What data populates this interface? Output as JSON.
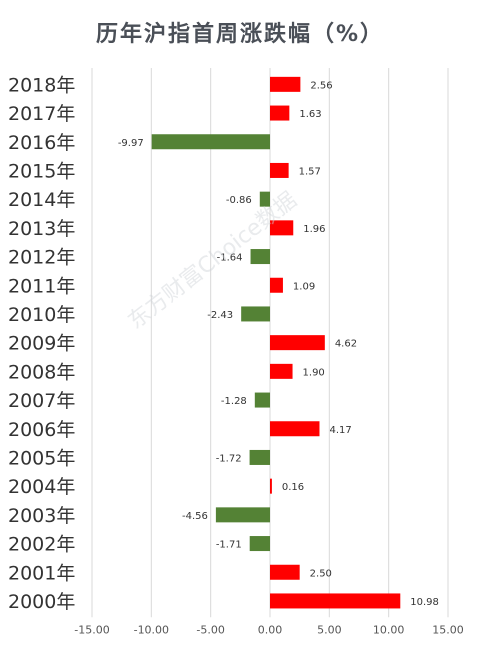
{
  "title": "历年沪指首周涨跌幅（%）",
  "watermark": "东方财富Choice数据",
  "colors": {
    "positive": "#ff0000",
    "negative": "#548235",
    "grid": "#d9d9d9",
    "text": "#333333"
  },
  "chart_data": {
    "type": "bar",
    "orientation": "horizontal",
    "title": "历年沪指首周涨跌幅（%）",
    "categories": [
      "2018年",
      "2017年",
      "2016年",
      "2015年",
      "2014年",
      "2013年",
      "2012年",
      "2011年",
      "2010年",
      "2009年",
      "2008年",
      "2007年",
      "2006年",
      "2005年",
      "2004年",
      "2003年",
      "2002年",
      "2001年",
      "2000年"
    ],
    "values": [
      2.56,
      1.63,
      -9.97,
      1.57,
      -0.86,
      1.96,
      -1.64,
      1.09,
      -2.43,
      4.62,
      1.9,
      -1.28,
      4.17,
      -1.72,
      0.16,
      -4.56,
      -1.71,
      2.5,
      10.98
    ],
    "data_labels": [
      "2.56",
      "1.63",
      "-9.97",
      "1.57",
      "-0.86",
      "1.96",
      "-1.64",
      "1.09",
      "-2.43",
      "4.62",
      "1.90",
      "-1.28",
      "4.17",
      "-1.72",
      "0.16",
      "-4.56",
      "-1.71",
      "2.50",
      "10.98"
    ],
    "xlim": [
      -15,
      15
    ],
    "xticks": [
      "-15.00",
      "-10.00",
      "-5.00",
      "0.00",
      "5.00",
      "10.00",
      "15.00"
    ],
    "xlabel": "",
    "ylabel": "",
    "grid": true
  }
}
